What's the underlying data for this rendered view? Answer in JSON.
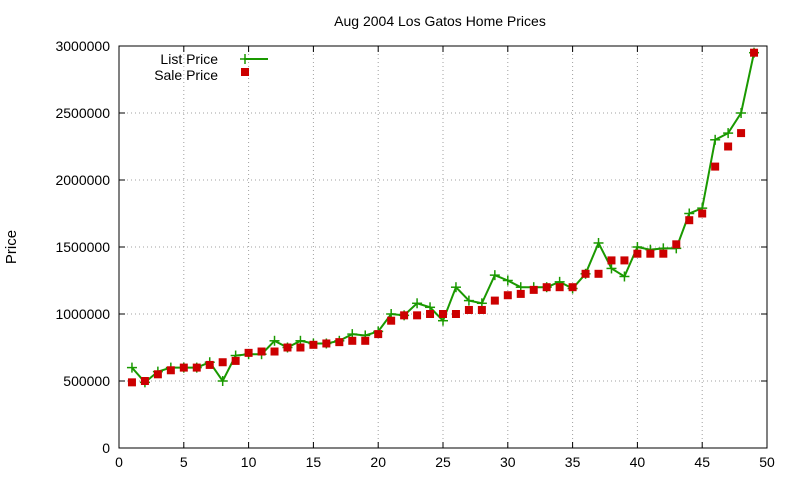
{
  "chart_data": {
    "type": "line",
    "title": "Aug 2004 Los Gatos Home Prices",
    "xlabel": "",
    "ylabel": "Price",
    "xlim": [
      0,
      50
    ],
    "ylim": [
      0,
      3000000
    ],
    "x_ticks": [
      0,
      5,
      10,
      15,
      20,
      25,
      30,
      35,
      40,
      45,
      50
    ],
    "y_ticks": [
      0,
      500000,
      1000000,
      1500000,
      2000000,
      2500000,
      3000000
    ],
    "grid": true,
    "legend_position": "top-left",
    "x": [
      1,
      2,
      3,
      4,
      5,
      6,
      7,
      8,
      9,
      10,
      11,
      12,
      13,
      14,
      15,
      16,
      17,
      18,
      19,
      20,
      21,
      22,
      23,
      24,
      25,
      26,
      27,
      28,
      29,
      30,
      31,
      32,
      33,
      34,
      35,
      36,
      37,
      38,
      39,
      40,
      41,
      42,
      43,
      44,
      45,
      46,
      47,
      48,
      49
    ],
    "series": [
      {
        "name": "List Price",
        "style": "line+cross",
        "color": "#1a9900",
        "values": [
          600000,
          490000,
          570000,
          600000,
          600000,
          600000,
          640000,
          500000,
          690000,
          700000,
          700000,
          800000,
          750000,
          800000,
          780000,
          780000,
          800000,
          850000,
          840000,
          870000,
          1000000,
          990000,
          1080000,
          1050000,
          950000,
          1200000,
          1100000,
          1080000,
          1290000,
          1250000,
          1200000,
          1200000,
          1200000,
          1240000,
          1190000,
          1300000,
          1530000,
          1340000,
          1280000,
          1500000,
          1480000,
          1490000,
          1490000,
          1750000,
          1790000,
          2300000,
          2350000,
          2500000,
          2950000
        ]
      },
      {
        "name": "Sale Price",
        "style": "squares",
        "color": "#cc0000",
        "values": [
          490000,
          500000,
          550000,
          580000,
          600000,
          600000,
          620000,
          640000,
          650000,
          710000,
          720000,
          720000,
          750000,
          750000,
          770000,
          780000,
          790000,
          800000,
          800000,
          850000,
          950000,
          990000,
          990000,
          1000000,
          1000000,
          1000000,
          1030000,
          1030000,
          1100000,
          1140000,
          1150000,
          1180000,
          1200000,
          1200000,
          1200000,
          1300000,
          1300000,
          1400000,
          1400000,
          1450000,
          1450000,
          1450000,
          1520000,
          1700000,
          1750000,
          2100000,
          2250000,
          2350000,
          2950000
        ]
      }
    ]
  }
}
